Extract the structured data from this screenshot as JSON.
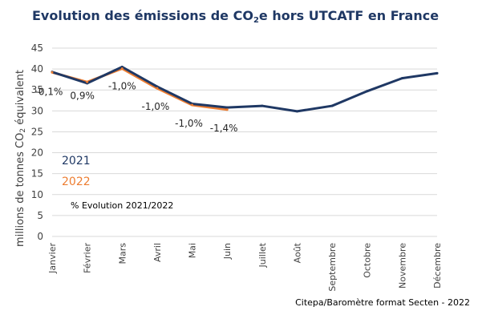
{
  "title": {
    "before": "Evolution des émissions de CO",
    "sub": "2",
    "after": "e hors UTCATF en France"
  },
  "ylabel": {
    "before": "millions de tonnes CO",
    "sub": "2",
    "after": " équivalent"
  },
  "source": "Citepa/Baromètre format Secten - 2022",
  "legend_note": "% Evolution 2021/2022",
  "colors": {
    "s2021": "#1f3864",
    "s2022": "#ed7d31",
    "grid": "#d9d9d9",
    "axis_text": "#404040"
  },
  "chart_data": {
    "type": "line",
    "categories": [
      "Janvier",
      "Février",
      "Mars",
      "Avril",
      "Mai",
      "Juin",
      "Juillet",
      "Août",
      "Septembre",
      "Octobre",
      "Novembre",
      "Décembre"
    ],
    "ylim": [
      0,
      45
    ],
    "yticks": [
      0,
      5,
      10,
      15,
      20,
      25,
      30,
      35,
      40,
      45
    ],
    "grid": true,
    "legend_placement": "left",
    "series": [
      {
        "name": "2021",
        "values": [
          39.3,
          36.6,
          40.5,
          35.8,
          31.7,
          30.8,
          31.2,
          29.9,
          31.2,
          34.7,
          37.8,
          39.0
        ]
      },
      {
        "name": "2022",
        "values": [
          39.2,
          36.9,
          40.1,
          35.4,
          31.4,
          30.3,
          null,
          null,
          null,
          null,
          null,
          null
        ]
      }
    ],
    "annotations": [
      {
        "text": "-0,1%",
        "category": "Janvier"
      },
      {
        "text": "0,9%",
        "category": "Février"
      },
      {
        "text": "-1,0%",
        "category": "Mars"
      },
      {
        "text": "-1,0%",
        "category": "Avril"
      },
      {
        "text": "-1,0%",
        "category": "Mai"
      },
      {
        "text": "-1,4%",
        "category": "Juin"
      }
    ]
  }
}
